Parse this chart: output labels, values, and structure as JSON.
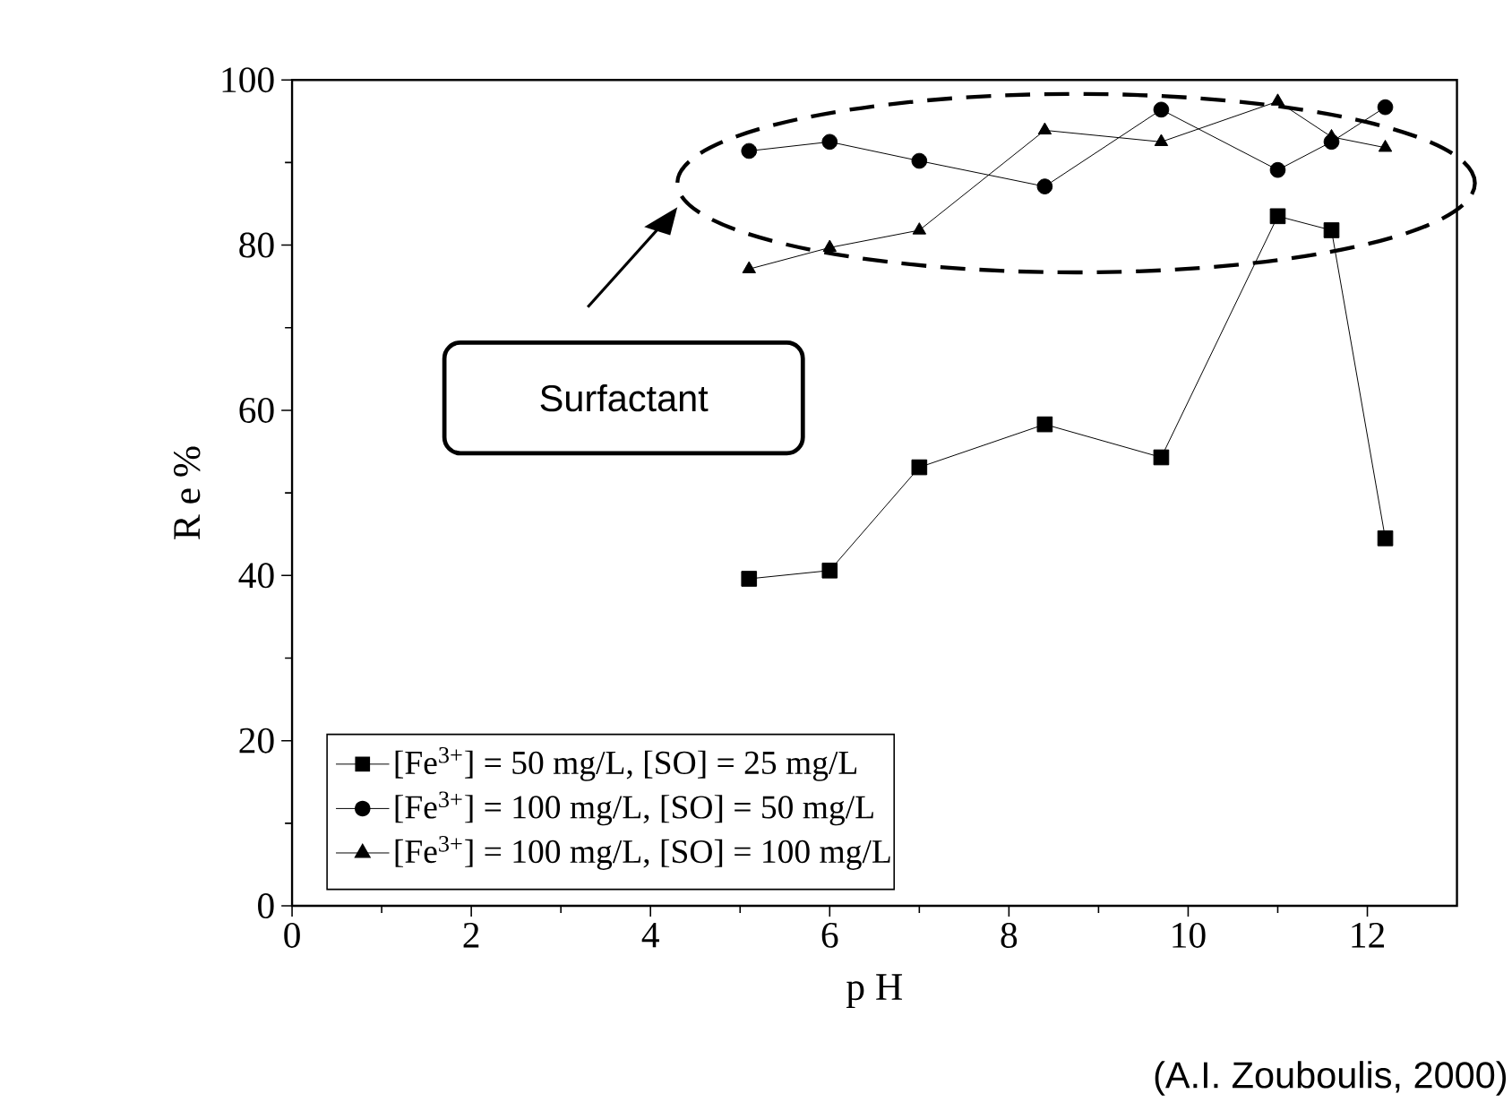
{
  "chart_data": {
    "type": "line",
    "xlabel": "p H",
    "ylabel": "R e %",
    "x": [
      5.1,
      6.0,
      7.0,
      8.4,
      9.7,
      11.0,
      11.6,
      12.2
    ],
    "series": [
      {
        "name": "[Fe$^{3+}$] = 50 mg/L, [SO] = 25 mg/L",
        "color": "#000000",
        "marker": "square",
        "values": [
          39.6,
          40.6,
          53.1,
          58.3,
          54.3,
          83.5,
          81.8,
          44.5
        ]
      },
      {
        "name": "[Fe$^{3+}$] = 100 mg/L, [SO] = 50 mg/L",
        "color": "#000000",
        "marker": "circle",
        "values": [
          91.4,
          92.5,
          90.2,
          87.1,
          96.4,
          89.1,
          92.5,
          96.7
        ]
      },
      {
        "name": "[Fe$^{3+}$] = 100 mg/L, [SO] = 100 mg/L",
        "color": "#000000",
        "marker": "triangle",
        "values": [
          77.1,
          79.7,
          81.8,
          93.9,
          92.5,
          97.4,
          93.1,
          91.8
        ]
      }
    ],
    "xlim": [
      0,
      13
    ],
    "ylim": [
      0,
      100
    ],
    "xticks": [
      0,
      2,
      4,
      6,
      8,
      10,
      12
    ],
    "yticks": [
      0,
      20,
      40,
      60,
      80,
      100
    ],
    "legend": "bottom",
    "annotations": [
      "Surfactant",
      "(A.I. Zouboulis, 2000)"
    ]
  }
}
